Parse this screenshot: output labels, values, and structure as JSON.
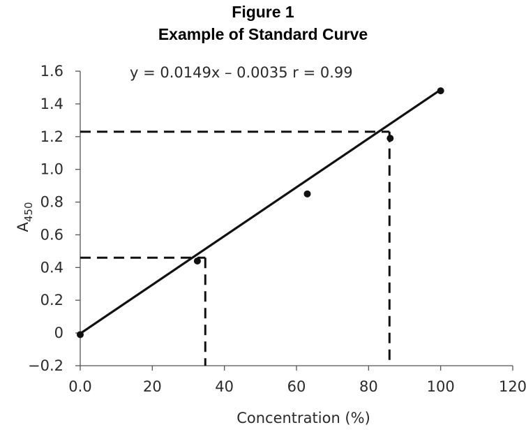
{
  "figure": {
    "title_line1": "Figure 1",
    "title_line2": "Example of Standard Curve"
  },
  "chart_data": {
    "type": "scatter",
    "xlabel": "Concentration (%)",
    "ylabel_main": "A",
    "ylabel_sub": "450",
    "xlim": [
      0,
      120
    ],
    "ylim": [
      -0.2,
      1.6
    ],
    "x_ticks": [
      0,
      20,
      40,
      60,
      80,
      100,
      120
    ],
    "x_tick_labels": [
      "0.0",
      "20",
      "40",
      "60",
      "80",
      "100",
      "120"
    ],
    "y_ticks": [
      -0.2,
      0,
      0.2,
      0.4,
      0.6,
      0.8,
      1.0,
      1.2,
      1.4,
      1.6
    ],
    "y_tick_labels": [
      "−0.2",
      "0",
      "0.2",
      "0.4",
      "0.6",
      "0.8",
      "1.0",
      "1.2",
      "1.4",
      "1.6"
    ],
    "annotation": "y = 0.0149x – 0.0035   r = 0.99",
    "points": [
      {
        "x": 0,
        "y": -0.01
      },
      {
        "x": 32.5,
        "y": 0.44
      },
      {
        "x": 63,
        "y": 0.85
      },
      {
        "x": 86,
        "y": 1.19
      },
      {
        "x": 100,
        "y": 1.48
      }
    ],
    "fit_line": {
      "slope": 0.0149,
      "intercept": -0.0035,
      "x_range": [
        0,
        100
      ]
    },
    "reference_lines": [
      {
        "x": 34.7,
        "y": 0.46
      },
      {
        "x": 85.8,
        "y": 1.23
      }
    ],
    "grid": false
  }
}
